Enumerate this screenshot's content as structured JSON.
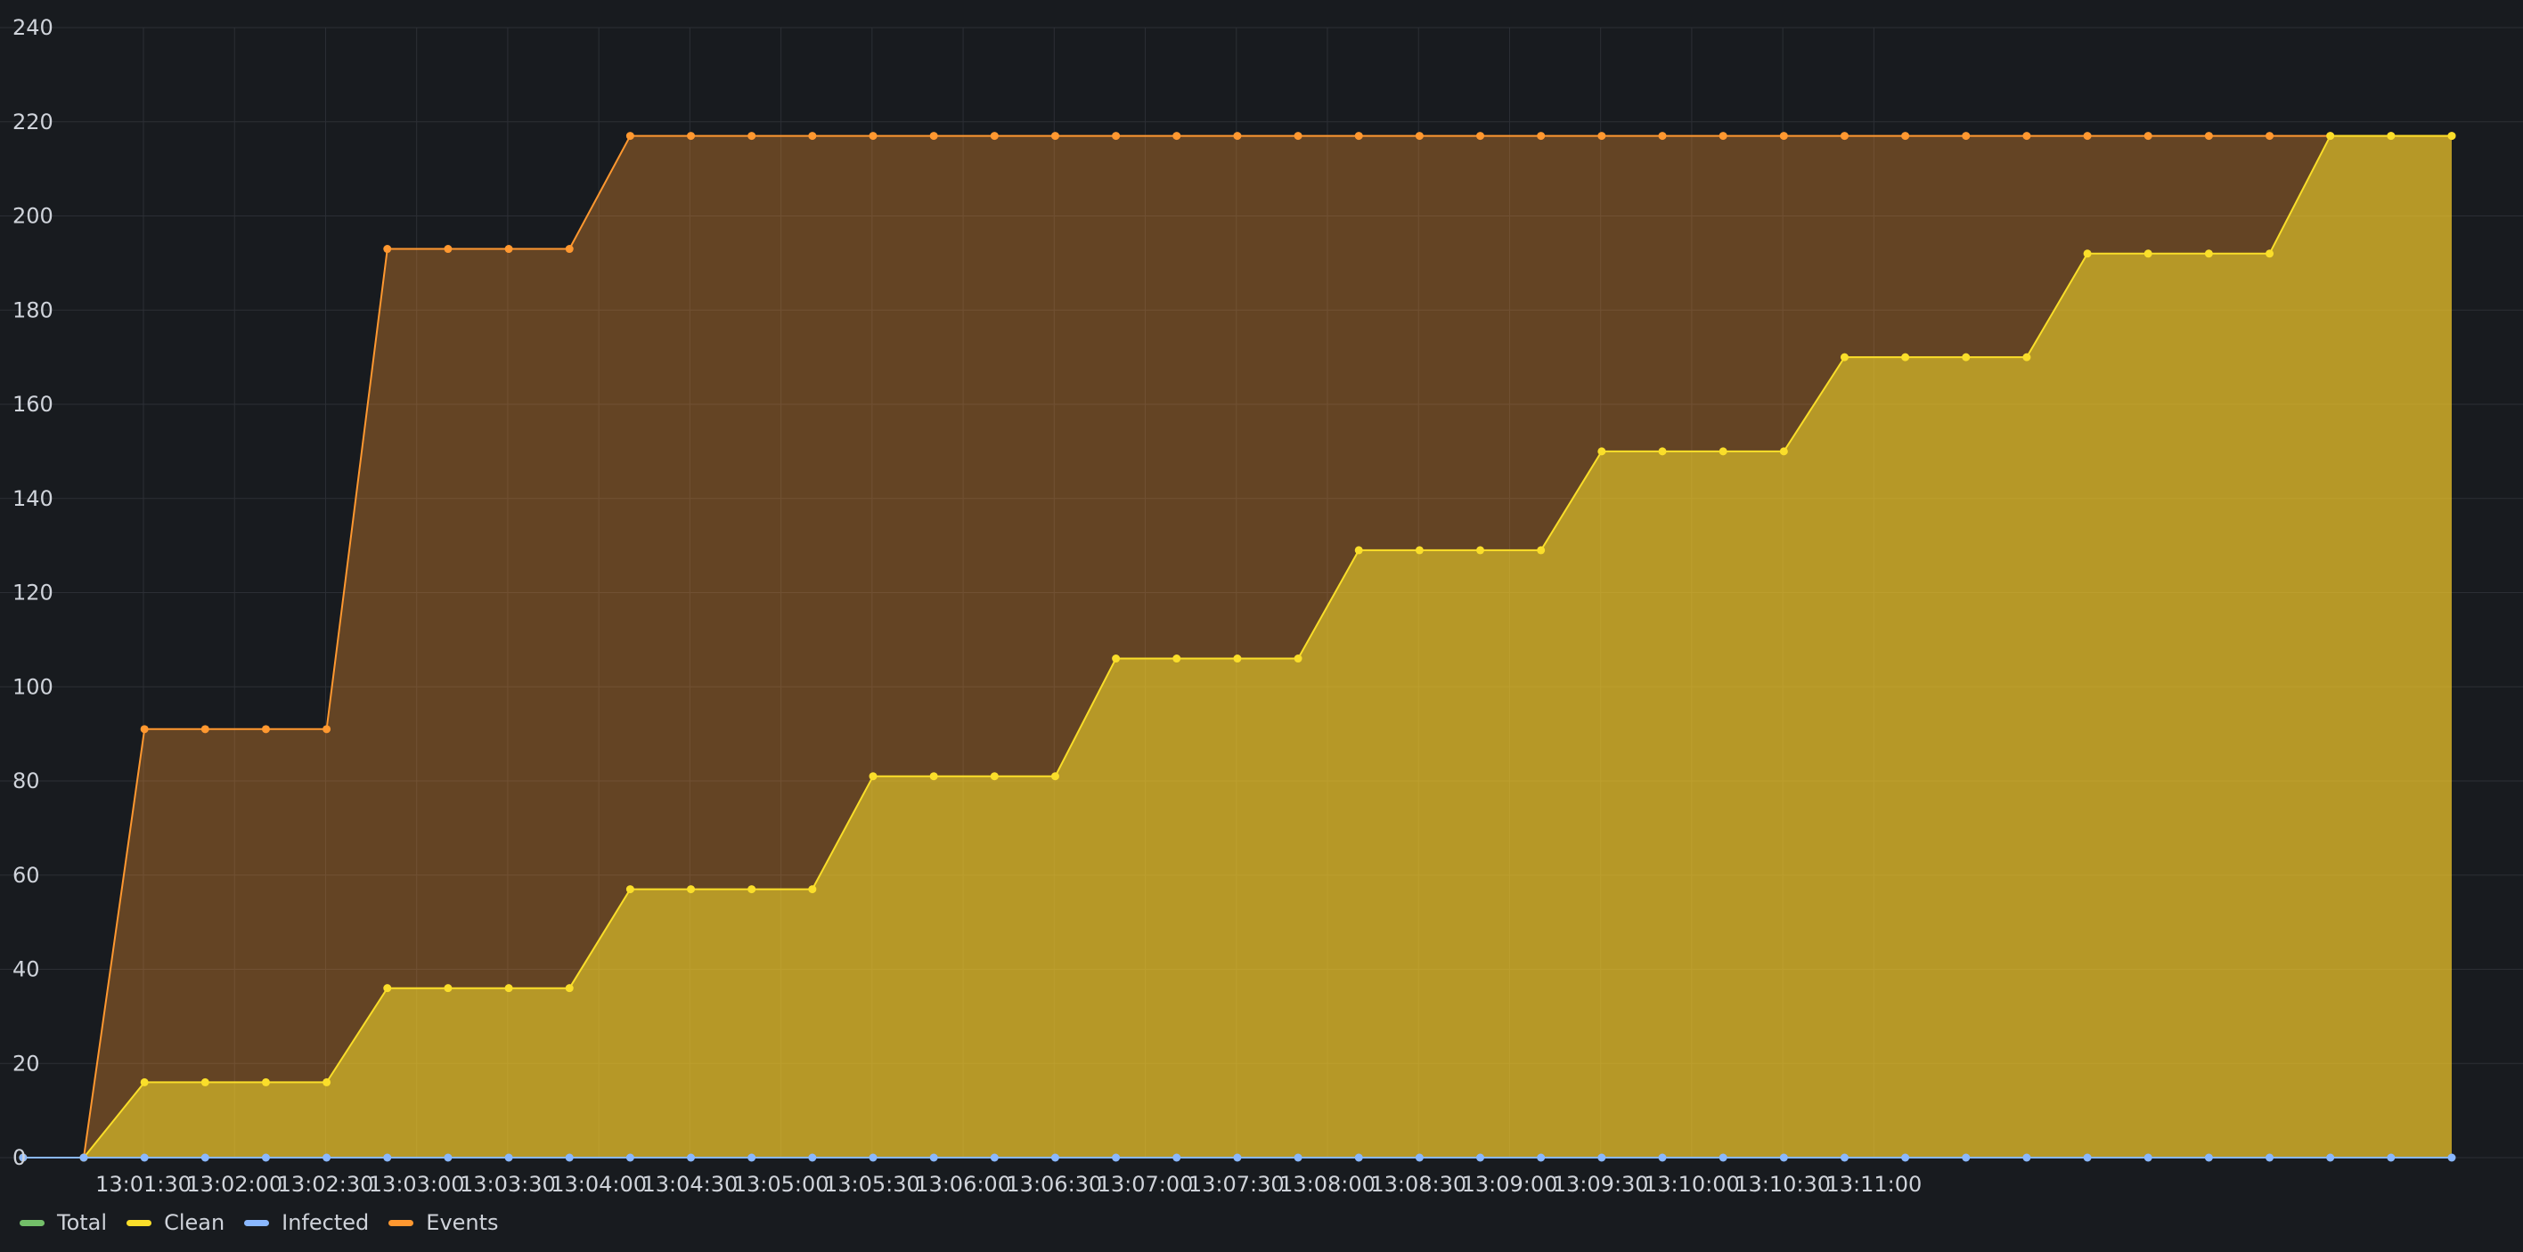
{
  "chart_data": {
    "type": "area",
    "x_start": "13:01:00",
    "x_step_seconds": 20,
    "x_ticks": [
      "13:01:30",
      "13:02:00",
      "13:02:30",
      "13:03:00",
      "13:03:30",
      "13:04:00",
      "13:04:30",
      "13:05:00",
      "13:05:30",
      "13:06:00",
      "13:06:30",
      "13:07:00",
      "13:07:30",
      "13:08:00",
      "13:08:30",
      "13:09:00",
      "13:09:30",
      "13:10:00",
      "13:10:30",
      "13:11:00"
    ],
    "y_ticks": [
      0,
      20,
      40,
      60,
      80,
      100,
      120,
      140,
      160,
      180,
      200,
      220,
      240
    ],
    "ylim": [
      0,
      240
    ],
    "grid": true,
    "legend_position": "bottom-left",
    "series": [
      {
        "name": "Total",
        "color": "#73bf69",
        "values": []
      },
      {
        "name": "Clean",
        "color": "#fade2a",
        "values": [
          0,
          0,
          16,
          16,
          16,
          16,
          36,
          36,
          36,
          36,
          57,
          57,
          57,
          57,
          81,
          81,
          81,
          81,
          106,
          106,
          106,
          106,
          129,
          129,
          129,
          129,
          150,
          150,
          150,
          150,
          170,
          170,
          170,
          170,
          192,
          192,
          192,
          192,
          217,
          217,
          217
        ]
      },
      {
        "name": "Infected",
        "color": "#8ab8ff",
        "values": [
          0,
          0,
          0,
          0,
          0,
          0,
          0,
          0,
          0,
          0,
          0,
          0,
          0,
          0,
          0,
          0,
          0,
          0,
          0,
          0,
          0,
          0,
          0,
          0,
          0,
          0,
          0,
          0,
          0,
          0,
          0,
          0,
          0,
          0,
          0,
          0,
          0,
          0,
          0,
          0,
          0
        ]
      },
      {
        "name": "Events",
        "color": "#ff9830",
        "values": [
          0,
          0,
          91,
          91,
          91,
          91,
          193,
          193,
          193,
          193,
          217,
          217,
          217,
          217,
          217,
          217,
          217,
          217,
          217,
          217,
          217,
          217,
          217,
          217,
          217,
          217,
          217,
          217,
          217,
          217,
          217,
          217,
          217,
          217,
          217,
          217,
          217,
          217,
          217,
          217,
          217
        ]
      }
    ]
  }
}
